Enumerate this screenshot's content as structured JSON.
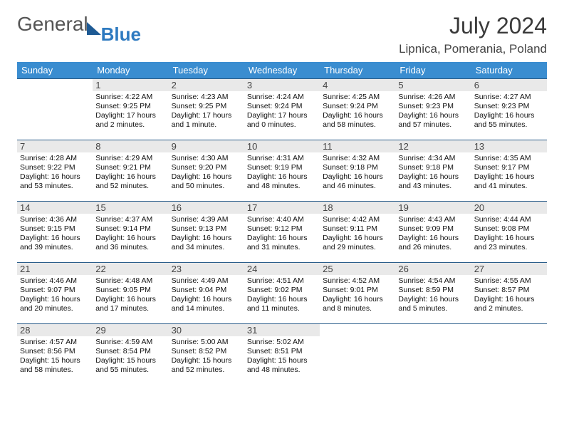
{
  "logo": {
    "part1": "General",
    "part2": "Blue"
  },
  "title": "July 2024",
  "location": "Lipnica, Pomerania, Poland",
  "colors": {
    "header_bg": "#3a8dd0",
    "header_text": "#ffffff",
    "daynum_bg": "#e9e9e9",
    "row_border": "#2a5d8a",
    "logo_gray": "#555555",
    "logo_blue": "#2e7ac0",
    "title_color": "#3a3a3a"
  },
  "weekdays": [
    "Sunday",
    "Monday",
    "Tuesday",
    "Wednesday",
    "Thursday",
    "Friday",
    "Saturday"
  ],
  "weeks": [
    [
      {
        "empty": true
      },
      {
        "n": "1",
        "sr": "4:22 AM",
        "ss": "9:25 PM",
        "dl": "17 hours and 2 minutes."
      },
      {
        "n": "2",
        "sr": "4:23 AM",
        "ss": "9:25 PM",
        "dl": "17 hours and 1 minute."
      },
      {
        "n": "3",
        "sr": "4:24 AM",
        "ss": "9:24 PM",
        "dl": "17 hours and 0 minutes."
      },
      {
        "n": "4",
        "sr": "4:25 AM",
        "ss": "9:24 PM",
        "dl": "16 hours and 58 minutes."
      },
      {
        "n": "5",
        "sr": "4:26 AM",
        "ss": "9:23 PM",
        "dl": "16 hours and 57 minutes."
      },
      {
        "n": "6",
        "sr": "4:27 AM",
        "ss": "9:23 PM",
        "dl": "16 hours and 55 minutes."
      }
    ],
    [
      {
        "n": "7",
        "sr": "4:28 AM",
        "ss": "9:22 PM",
        "dl": "16 hours and 53 minutes."
      },
      {
        "n": "8",
        "sr": "4:29 AM",
        "ss": "9:21 PM",
        "dl": "16 hours and 52 minutes."
      },
      {
        "n": "9",
        "sr": "4:30 AM",
        "ss": "9:20 PM",
        "dl": "16 hours and 50 minutes."
      },
      {
        "n": "10",
        "sr": "4:31 AM",
        "ss": "9:19 PM",
        "dl": "16 hours and 48 minutes."
      },
      {
        "n": "11",
        "sr": "4:32 AM",
        "ss": "9:18 PM",
        "dl": "16 hours and 46 minutes."
      },
      {
        "n": "12",
        "sr": "4:34 AM",
        "ss": "9:18 PM",
        "dl": "16 hours and 43 minutes."
      },
      {
        "n": "13",
        "sr": "4:35 AM",
        "ss": "9:17 PM",
        "dl": "16 hours and 41 minutes."
      }
    ],
    [
      {
        "n": "14",
        "sr": "4:36 AM",
        "ss": "9:15 PM",
        "dl": "16 hours and 39 minutes."
      },
      {
        "n": "15",
        "sr": "4:37 AM",
        "ss": "9:14 PM",
        "dl": "16 hours and 36 minutes."
      },
      {
        "n": "16",
        "sr": "4:39 AM",
        "ss": "9:13 PM",
        "dl": "16 hours and 34 minutes."
      },
      {
        "n": "17",
        "sr": "4:40 AM",
        "ss": "9:12 PM",
        "dl": "16 hours and 31 minutes."
      },
      {
        "n": "18",
        "sr": "4:42 AM",
        "ss": "9:11 PM",
        "dl": "16 hours and 29 minutes."
      },
      {
        "n": "19",
        "sr": "4:43 AM",
        "ss": "9:09 PM",
        "dl": "16 hours and 26 minutes."
      },
      {
        "n": "20",
        "sr": "4:44 AM",
        "ss": "9:08 PM",
        "dl": "16 hours and 23 minutes."
      }
    ],
    [
      {
        "n": "21",
        "sr": "4:46 AM",
        "ss": "9:07 PM",
        "dl": "16 hours and 20 minutes."
      },
      {
        "n": "22",
        "sr": "4:48 AM",
        "ss": "9:05 PM",
        "dl": "16 hours and 17 minutes."
      },
      {
        "n": "23",
        "sr": "4:49 AM",
        "ss": "9:04 PM",
        "dl": "16 hours and 14 minutes."
      },
      {
        "n": "24",
        "sr": "4:51 AM",
        "ss": "9:02 PM",
        "dl": "16 hours and 11 minutes."
      },
      {
        "n": "25",
        "sr": "4:52 AM",
        "ss": "9:01 PM",
        "dl": "16 hours and 8 minutes."
      },
      {
        "n": "26",
        "sr": "4:54 AM",
        "ss": "8:59 PM",
        "dl": "16 hours and 5 minutes."
      },
      {
        "n": "27",
        "sr": "4:55 AM",
        "ss": "8:57 PM",
        "dl": "16 hours and 2 minutes."
      }
    ],
    [
      {
        "n": "28",
        "sr": "4:57 AM",
        "ss": "8:56 PM",
        "dl": "15 hours and 58 minutes."
      },
      {
        "n": "29",
        "sr": "4:59 AM",
        "ss": "8:54 PM",
        "dl": "15 hours and 55 minutes."
      },
      {
        "n": "30",
        "sr": "5:00 AM",
        "ss": "8:52 PM",
        "dl": "15 hours and 52 minutes."
      },
      {
        "n": "31",
        "sr": "5:02 AM",
        "ss": "8:51 PM",
        "dl": "15 hours and 48 minutes."
      },
      {
        "empty": true
      },
      {
        "empty": true
      },
      {
        "empty": true
      }
    ]
  ],
  "labels": {
    "sunrise": "Sunrise: ",
    "sunset": "Sunset: ",
    "daylight": "Daylight: "
  }
}
